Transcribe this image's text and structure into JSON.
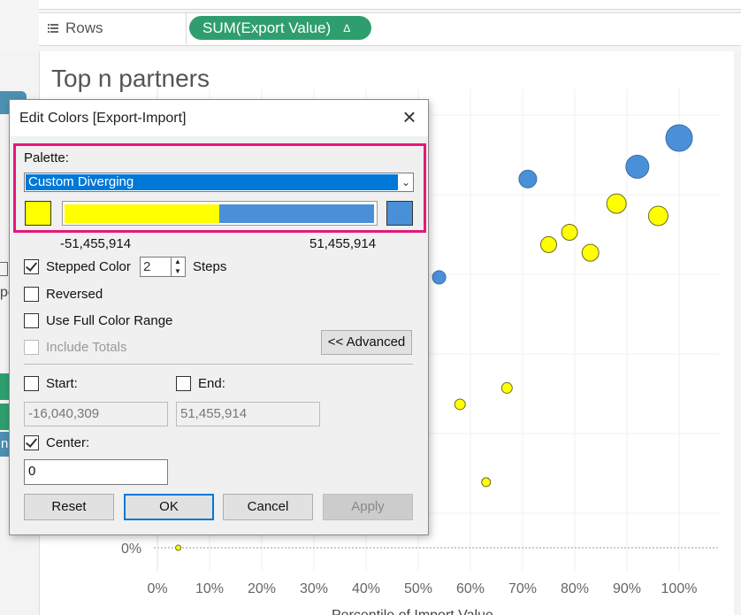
{
  "shelf": {
    "rows_label": "Rows",
    "rows_icon": "list-icon",
    "pill_label": "SUM(Export Value)",
    "pill_icon": "delta-icon"
  },
  "sheet": {
    "title": "Top n partners"
  },
  "sidebar_fragments": {
    "pe": "pe",
    "dots": "..",
    "n": "n"
  },
  "chart_data": {
    "type": "scatter",
    "title": "Top n partners",
    "xlabel": "Percentile of Import Value",
    "x_ticks": [
      "0%",
      "10%",
      "20%",
      "30%",
      "40%",
      "50%",
      "60%",
      "70%",
      "80%",
      "90%",
      "100%"
    ],
    "xlim": [
      0,
      1
    ],
    "y_visible_tick": "0%",
    "points": [
      {
        "x": 1.0,
        "y": 1.0,
        "size": 3.0,
        "color": "blue"
      },
      {
        "x": 0.92,
        "y": 0.93,
        "size": 2.6,
        "color": "blue"
      },
      {
        "x": 0.71,
        "y": 0.9,
        "size": 2.0,
        "color": "blue"
      },
      {
        "x": 0.88,
        "y": 0.84,
        "size": 2.2,
        "color": "yellow"
      },
      {
        "x": 0.96,
        "y": 0.81,
        "size": 2.2,
        "color": "yellow"
      },
      {
        "x": 0.79,
        "y": 0.77,
        "size": 1.8,
        "color": "yellow"
      },
      {
        "x": 0.75,
        "y": 0.74,
        "size": 1.8,
        "color": "yellow"
      },
      {
        "x": 0.83,
        "y": 0.72,
        "size": 1.9,
        "color": "yellow"
      },
      {
        "x": 0.54,
        "y": 0.66,
        "size": 1.5,
        "color": "blue"
      },
      {
        "x": 0.67,
        "y": 0.39,
        "size": 1.2,
        "color": "yellow"
      },
      {
        "x": 0.58,
        "y": 0.35,
        "size": 1.2,
        "color": "yellow"
      },
      {
        "x": 0.63,
        "y": 0.16,
        "size": 1.0,
        "color": "yellow"
      },
      {
        "x": 0.04,
        "y": 0.0,
        "size": 0.6,
        "color": "yellow"
      }
    ],
    "colors": {
      "yellow": "#ffff00",
      "blue": "#4a90d9"
    }
  },
  "dialog": {
    "title": "Edit Colors [Export-Import]",
    "close_icon": "close-icon",
    "palette_label": "Palette:",
    "palette_value": "Custom Diverging",
    "start_color": "#ffff00",
    "end_color": "#4a90d9",
    "range_min": "-51,455,914",
    "range_max": "51,455,914",
    "stepped_color_label": "Stepped Color",
    "stepped_color_checked": true,
    "steps_value": "2",
    "steps_label": "Steps",
    "reversed_label": "Reversed",
    "full_range_label": "Use Full Color Range",
    "include_totals_label": "Include Totals",
    "advanced_label": "<< Advanced",
    "start_label": "Start:",
    "start_value": "-16,040,309",
    "end_label": "End:",
    "end_value": "51,455,914",
    "center_label": "Center:",
    "center_checked": true,
    "center_value": "0",
    "reset_label": "Reset",
    "ok_label": "OK",
    "cancel_label": "Cancel",
    "apply_label": "Apply"
  }
}
